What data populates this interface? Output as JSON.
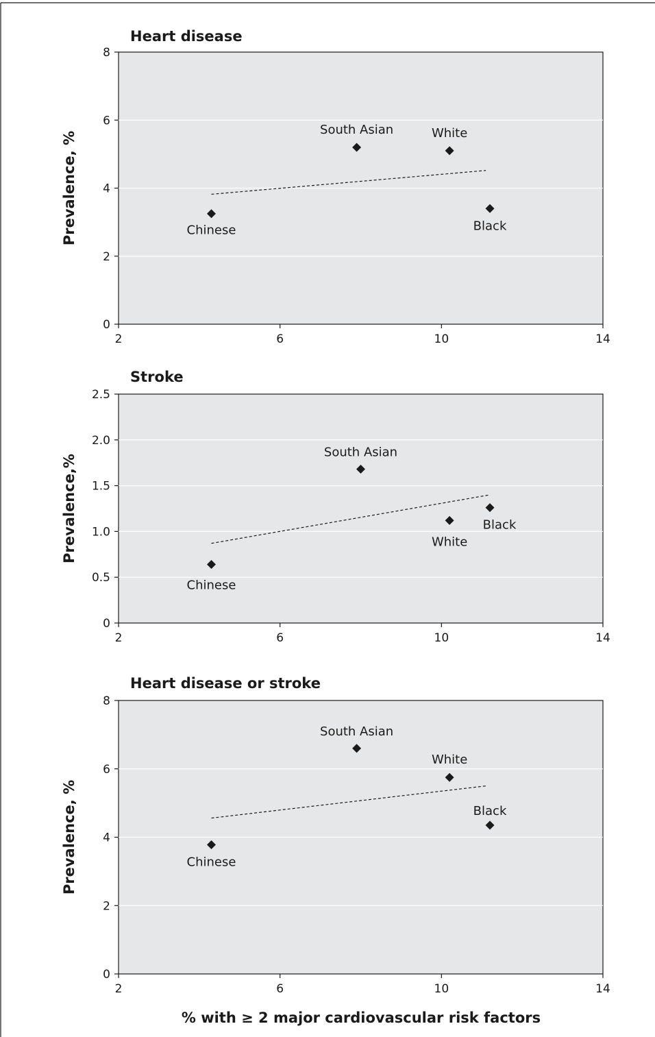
{
  "figure": {
    "xlabel": "% with ≥ 2 major cardiovascular risk factors"
  },
  "chart_data": [
    {
      "type": "scatter",
      "title": "Heart disease",
      "ylabel": "Prevalence, %",
      "xlim": [
        2,
        14
      ],
      "ylim": [
        0,
        8
      ],
      "xticks": [
        "2",
        "6",
        "10",
        "14"
      ],
      "yticks": [
        "0",
        "2",
        "4",
        "6",
        "8"
      ],
      "grid": true,
      "points": [
        {
          "label": "Chinese",
          "x": 4.3,
          "y": 3.25
        },
        {
          "label": "South Asian",
          "x": 7.9,
          "y": 5.2
        },
        {
          "label": "White",
          "x": 10.2,
          "y": 5.1
        },
        {
          "label": "Black",
          "x": 11.2,
          "y": 3.4
        }
      ],
      "trend": {
        "x": [
          4.3,
          11.1
        ],
        "y": [
          3.82,
          4.52
        ]
      }
    },
    {
      "type": "scatter",
      "title": "Stroke",
      "ylabel": "Prevalence,%",
      "xlim": [
        2,
        14
      ],
      "ylim": [
        0,
        2.5
      ],
      "xticks": [
        "2",
        "6",
        "10",
        "14"
      ],
      "yticks": [
        "0",
        "0.5",
        "1.0",
        "1.5",
        "2.0",
        "2.5"
      ],
      "grid": true,
      "points": [
        {
          "label": "Chinese",
          "x": 4.3,
          "y": 0.64
        },
        {
          "label": "South Asian",
          "x": 8.0,
          "y": 1.68
        },
        {
          "label": "White",
          "x": 10.2,
          "y": 1.12
        },
        {
          "label": "Black",
          "x": 11.2,
          "y": 1.26
        }
      ],
      "trend": {
        "x": [
          4.3,
          11.2
        ],
        "y": [
          0.87,
          1.4
        ]
      }
    },
    {
      "type": "scatter",
      "title": "Heart disease or stroke",
      "ylabel": "Prevalence, %",
      "xlim": [
        2,
        14
      ],
      "ylim": [
        0,
        8
      ],
      "xticks": [
        "2",
        "6",
        "10",
        "14"
      ],
      "yticks": [
        "0",
        "2",
        "4",
        "6",
        "8"
      ],
      "grid": true,
      "points": [
        {
          "label": "Chinese",
          "x": 4.3,
          "y": 3.78
        },
        {
          "label": "South Asian",
          "x": 7.9,
          "y": 6.6
        },
        {
          "label": "White",
          "x": 10.2,
          "y": 5.75
        },
        {
          "label": "Black",
          "x": 11.2,
          "y": 4.35
        }
      ],
      "trend": {
        "x": [
          4.3,
          11.1
        ],
        "y": [
          4.56,
          5.5
        ]
      }
    }
  ]
}
